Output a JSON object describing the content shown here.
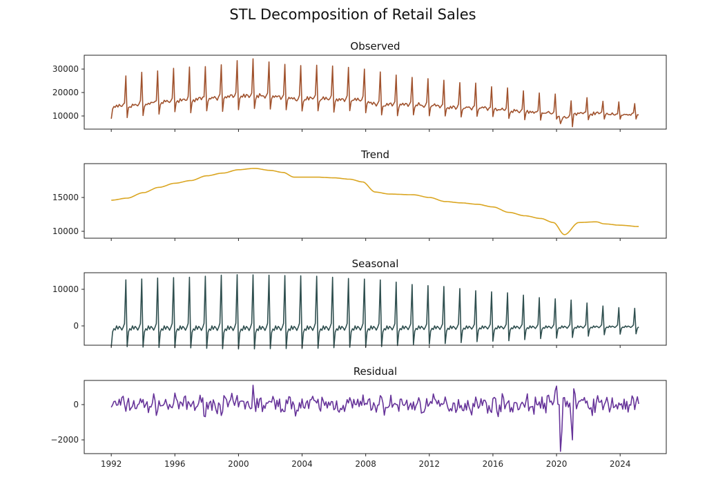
{
  "chart_data": {
    "type": "line",
    "title": "STL Decomposition of Retail Sales",
    "x_ticks": [
      1992,
      1996,
      2000,
      2004,
      2008,
      2012,
      2016,
      2020,
      2024
    ],
    "xlim": [
      1990.3,
      2026.9
    ],
    "data_range": [
      1992,
      2025.2
    ],
    "colors": {
      "observed": "#a0522d",
      "trend": "#daa520",
      "seasonal": "#2f4f4f",
      "residual": "#663399"
    },
    "panels": [
      {
        "key": "observed",
        "title": "Observed",
        "ylim": [
          4400,
          35900
        ],
        "yticks": [
          10000,
          20000,
          30000
        ],
        "ytick_labels": [
          "10000",
          "20000",
          "30000"
        ]
      },
      {
        "key": "trend",
        "title": "Trend",
        "ylim": [
          8980,
          20000
        ],
        "yticks": [
          10000,
          15000
        ],
        "ytick_labels": [
          "10000",
          "15000"
        ]
      },
      {
        "key": "seasonal",
        "title": "Seasonal",
        "ylim": [
          -5280,
          14530
        ],
        "yticks": [
          0,
          10000
        ],
        "ytick_labels": [
          "0",
          "10000"
        ]
      },
      {
        "key": "residual",
        "title": "Residual",
        "ylim": [
          -2780,
          1370
        ],
        "yticks": [
          -2000,
          0
        ],
        "ytick_labels": [
          "−2000",
          "0"
        ]
      }
    ],
    "trend_points": {
      "x": [
        1992,
        1993,
        1994,
        1995,
        1996,
        1997,
        1998,
        1999,
        2000,
        2001,
        2002,
        2002.8,
        2003.5,
        2005,
        2006,
        2007,
        2007.8,
        2008.6,
        2009.5,
        2011,
        2012,
        2013,
        2014,
        2015,
        2016,
        2017,
        2018,
        2019,
        2019.8,
        2020.5,
        2021.4,
        2022.5,
        2023,
        2024,
        2025.2
      ],
      "y": [
        14600,
        14900,
        15700,
        16500,
        17100,
        17500,
        18200,
        18600,
        19100,
        19300,
        19000,
        18700,
        18000,
        18000,
        17900,
        17700,
        17300,
        15800,
        15500,
        15400,
        15000,
        14400,
        14200,
        14000,
        13600,
        12800,
        12300,
        11900,
        11300,
        9500,
        11300,
        11400,
        11100,
        10900,
        10700
      ]
    },
    "seasonal_peak_by_year": {
      "years": [
        1992,
        1996,
        2000,
        2004,
        2008,
        2012,
        2016,
        2020,
        2024,
        2025
      ],
      "peak": [
        12500,
        13200,
        14000,
        13700,
        12800,
        11000,
        9300,
        7400,
        5000,
        4800
      ]
    },
    "seasonal_month_profile": [
      -0.36,
      -0.13,
      -0.06,
      -0.09,
      0.0,
      -0.07,
      -0.01,
      -0.04,
      -0.09,
      -0.03,
      0.05,
      1.0
    ],
    "residual_noise_std": 330,
    "residual_events": {
      "x": [
        2000.9,
        2019.9,
        2020.0,
        2020.25,
        2020.33,
        2020.5,
        2020.9,
        2021.0,
        2021.1,
        2021.2
      ],
      "y": [
        1100,
        800,
        1050,
        -2650,
        -1500,
        400,
        -900,
        -2000,
        900,
        600
      ]
    }
  }
}
